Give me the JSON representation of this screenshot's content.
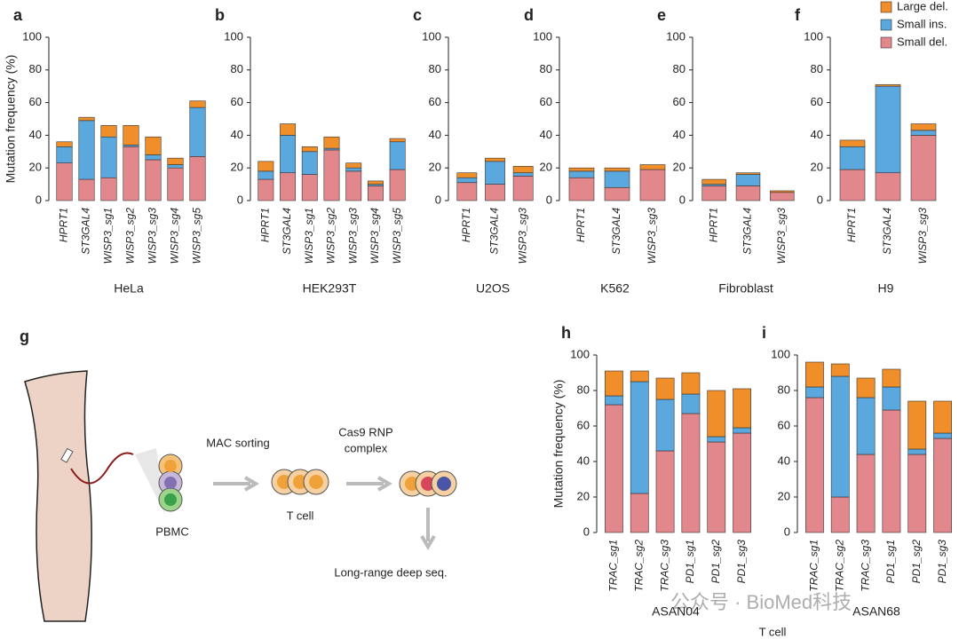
{
  "chart_data": [
    {
      "type": "bar",
      "stacked": true,
      "panel_label": "a",
      "y_label": "Mutation frequency (%)",
      "x_label": "HeLa",
      "categories": [
        "HPRT1",
        "ST3GAL4",
        "WISP3_sg1",
        "WISP3_sg2",
        "WISP3_sg3",
        "WISP3_sg4",
        "WISP3_sg5"
      ],
      "series": [
        {
          "name": "Small del.",
          "color": "#e2888d",
          "values": [
            23,
            13,
            14,
            33,
            25,
            20,
            27
          ]
        },
        {
          "name": "Small ins.",
          "color": "#5aa8dd",
          "values": [
            10,
            36,
            25,
            1,
            3,
            2,
            30
          ]
        },
        {
          "name": "Large del.",
          "color": "#f08f2a",
          "values": [
            3,
            2,
            7,
            12,
            11,
            4,
            4
          ]
        }
      ],
      "ylim": [
        0,
        100
      ],
      "yticks": [
        0,
        20,
        40,
        60,
        80,
        100
      ],
      "legend": false
    },
    {
      "type": "bar",
      "stacked": true,
      "panel_label": "b",
      "x_label": "HEK293T",
      "categories": [
        "HPRT1",
        "ST3GAL4",
        "WISP3_sg1",
        "WISP3_sg2",
        "WISP3_sg3",
        "WISP3_sg4",
        "WISP3_sg5"
      ],
      "series": [
        {
          "name": "Small del.",
          "color": "#e2888d",
          "values": [
            13,
            17,
            16,
            31,
            18,
            9,
            19
          ]
        },
        {
          "name": "Small ins.",
          "color": "#5aa8dd",
          "values": [
            5,
            23,
            14,
            1,
            2,
            1,
            17
          ]
        },
        {
          "name": "Large del.",
          "color": "#f08f2a",
          "values": [
            6,
            7,
            3,
            7,
            3,
            2,
            2
          ]
        }
      ],
      "ylim": [
        0,
        100
      ],
      "yticks": [
        0,
        20,
        40,
        60,
        80,
        100
      ],
      "legend": false
    },
    {
      "type": "bar",
      "stacked": true,
      "panel_label": "c",
      "x_label": "U2OS",
      "categories": [
        "HPRT1",
        "ST3GAL4",
        "WISP3_sg3"
      ],
      "series": [
        {
          "name": "Small del.",
          "color": "#e2888d",
          "values": [
            11,
            10,
            15
          ]
        },
        {
          "name": "Small ins.",
          "color": "#5aa8dd",
          "values": [
            3,
            14,
            2
          ]
        },
        {
          "name": "Large del.",
          "color": "#f08f2a",
          "values": [
            3,
            2,
            4
          ]
        }
      ],
      "ylim": [
        0,
        100
      ],
      "yticks": [
        0,
        20,
        40,
        60,
        80,
        100
      ],
      "legend": false
    },
    {
      "type": "bar",
      "stacked": true,
      "panel_label": "d",
      "x_label": "K562",
      "categories": [
        "HPRT1",
        "ST3GAL4",
        "WISP3_sg3"
      ],
      "series": [
        {
          "name": "Small del.",
          "color": "#e2888d",
          "values": [
            14,
            8,
            19
          ]
        },
        {
          "name": "Small ins.",
          "color": "#5aa8dd",
          "values": [
            4,
            10,
            0
          ]
        },
        {
          "name": "Large del.",
          "color": "#f08f2a",
          "values": [
            2,
            2,
            3
          ]
        }
      ],
      "ylim": [
        0,
        100
      ],
      "yticks": [
        0,
        20,
        40,
        60,
        80,
        100
      ],
      "legend": false
    },
    {
      "type": "bar",
      "stacked": true,
      "panel_label": "e",
      "x_label": "Fibroblast",
      "categories": [
        "HPRT1",
        "ST3GAL4",
        "WISP3_sg3"
      ],
      "series": [
        {
          "name": "Small del.",
          "color": "#e2888d",
          "values": [
            9,
            9,
            5
          ]
        },
        {
          "name": "Small ins.",
          "color": "#5aa8dd",
          "values": [
            1,
            7,
            0
          ]
        },
        {
          "name": "Large del.",
          "color": "#f08f2a",
          "values": [
            3,
            1,
            1
          ]
        }
      ],
      "ylim": [
        0,
        100
      ],
      "yticks": [
        0,
        20,
        40,
        60,
        80,
        100
      ],
      "legend": false
    },
    {
      "type": "bar",
      "stacked": true,
      "panel_label": "f",
      "x_label": "H9",
      "categories": [
        "HPRT1",
        "ST3GAL4",
        "WISP3_sg3"
      ],
      "series": [
        {
          "name": "Small del.",
          "color": "#e2888d",
          "values": [
            19,
            17,
            40
          ]
        },
        {
          "name": "Small ins.",
          "color": "#5aa8dd",
          "values": [
            14,
            53,
            3
          ]
        },
        {
          "name": "Large del.",
          "color": "#f08f2a",
          "values": [
            4,
            1,
            4
          ]
        }
      ],
      "ylim": [
        0,
        100
      ],
      "yticks": [
        0,
        20,
        40,
        60,
        80,
        100
      ],
      "legend": "upper right"
    },
    {
      "type": "bar",
      "stacked": true,
      "panel_label": "h",
      "y_label": "Mutation frequency (%)",
      "x_label": "ASAN04",
      "categories": [
        "TRAC_sg1",
        "TRAC_sg2",
        "TRAC_sg3",
        "PD1_sg1",
        "PD1_sg2",
        "PD1_sg3"
      ],
      "series": [
        {
          "name": "Small del.",
          "color": "#e2888d",
          "values": [
            72,
            22,
            46,
            67,
            51,
            56
          ]
        },
        {
          "name": "Small ins.",
          "color": "#5aa8dd",
          "values": [
            5,
            63,
            29,
            11,
            3,
            3
          ]
        },
        {
          "name": "Large del.",
          "color": "#f08f2a",
          "values": [
            14,
            6,
            12,
            12,
            26,
            22
          ]
        }
      ],
      "ylim": [
        0,
        100
      ],
      "yticks": [
        0,
        20,
        40,
        60,
        80,
        100
      ],
      "legend": false
    },
    {
      "type": "bar",
      "stacked": true,
      "panel_label": "i",
      "x_label": "ASAN68",
      "categories": [
        "TRAC_sg1",
        "TRAC_sg2",
        "TRAC_sg3",
        "PD1_sg1",
        "PD1_sg2",
        "PD1_sg3"
      ],
      "series": [
        {
          "name": "Small del.",
          "color": "#e2888d",
          "values": [
            76,
            20,
            44,
            69,
            44,
            53
          ]
        },
        {
          "name": "Small ins.",
          "color": "#5aa8dd",
          "values": [
            6,
            68,
            32,
            13,
            3,
            3
          ]
        },
        {
          "name": "Large del.",
          "color": "#f08f2a",
          "values": [
            14,
            7,
            11,
            10,
            27,
            18
          ]
        }
      ],
      "ylim": [
        0,
        100
      ],
      "yticks": [
        0,
        20,
        40,
        60,
        80,
        100
      ],
      "legend": false
    }
  ],
  "group_label": "T cell",
  "diagram": {
    "panel_label": "g",
    "sorting": "MAC sorting",
    "rnp": [
      "Cas9 RNP",
      "complex"
    ],
    "tcell": "T cell",
    "pbmc": "PBMC",
    "sequencing": "Long-range deep seq."
  },
  "watermark": "公众号 · BioMed科技"
}
